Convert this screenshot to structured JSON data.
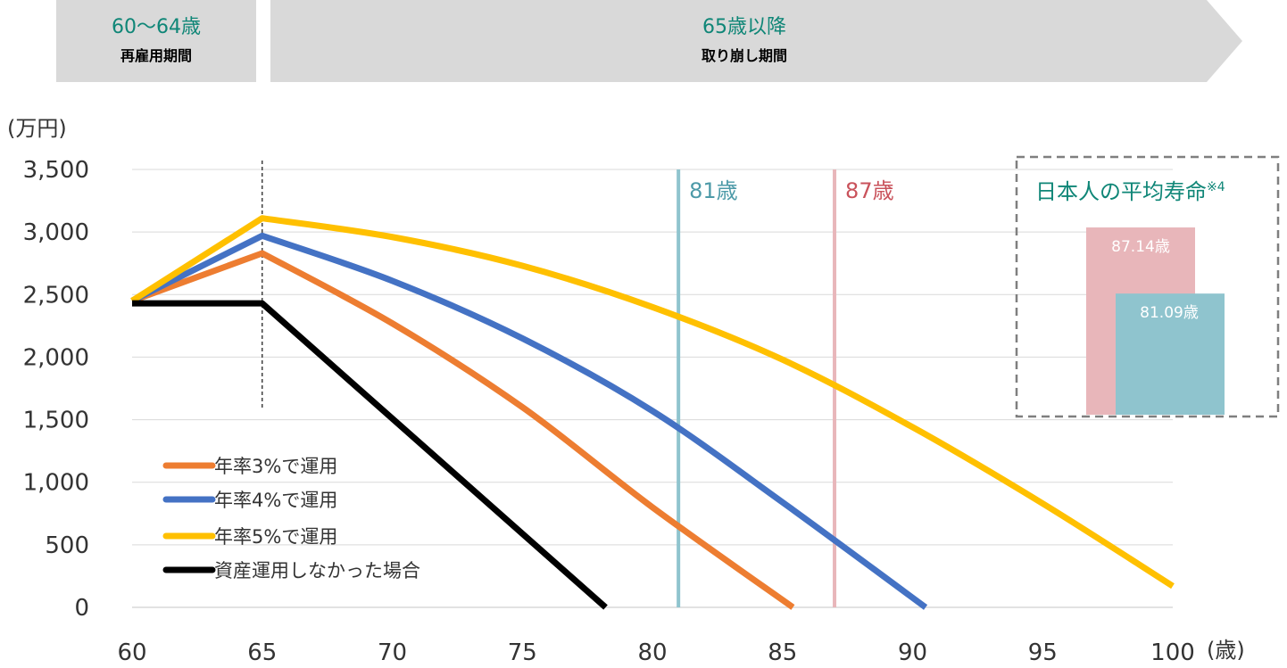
{
  "phases": [
    {
      "age": "60〜64歳",
      "label": "再雇用期間"
    },
    {
      "age": "65歳以降",
      "label": "取り崩し期間"
    }
  ],
  "chart_data": {
    "type": "line",
    "y_unit": "(万円)",
    "x_unit": "(歳)",
    "xlim": [
      60,
      100
    ],
    "ylim": [
      0,
      3500
    ],
    "x_ticks": [
      60,
      65,
      70,
      75,
      80,
      85,
      90,
      95,
      100
    ],
    "y_ticks": [
      0,
      500,
      1000,
      1500,
      2000,
      2500,
      3000,
      3500
    ],
    "y_tick_labels": [
      "0",
      "500",
      "1,000",
      "1,500",
      "2,000",
      "2,500",
      "3,000",
      "3,500"
    ],
    "reference_lines": [
      {
        "x": 81,
        "label": "81歳",
        "color": "#8fc4ce"
      },
      {
        "x": 87,
        "label": "87歳",
        "color": "#e8b6ba"
      }
    ],
    "dashed_line_x": 65,
    "series": [
      {
        "name": "年率3%で運用",
        "color": "#ed7d31",
        "x": [
          60,
          65,
          70,
          75,
          80,
          85.4
        ],
        "y": [
          2450,
          2830,
          2270,
          1600,
          800,
          0
        ]
      },
      {
        "name": "年率4%で運用",
        "color": "#4472c4",
        "x": [
          60,
          65,
          70,
          75,
          80,
          85,
          90.5
        ],
        "y": [
          2450,
          2970,
          2610,
          2150,
          1570,
          840,
          0
        ]
      },
      {
        "name": "年率5%で運用",
        "color": "#ffc000",
        "x": [
          60,
          65,
          70,
          75,
          80,
          85,
          90,
          95,
          100
        ],
        "y": [
          2450,
          3110,
          2960,
          2730,
          2400,
          1980,
          1440,
          830,
          170
        ]
      },
      {
        "name": "資産運用しなかった場合",
        "color": "#000000",
        "x": [
          60,
          65,
          78.2
        ],
        "y": [
          2430,
          2430,
          0
        ]
      }
    ],
    "inset": {
      "title": "日本人の平均寿命",
      "note": "※4",
      "bars": [
        {
          "label": "87.14歳",
          "value": 87.14,
          "color": "#e8b6ba"
        },
        {
          "label": "81.09歳",
          "value": 81.09,
          "color": "#8fc4ce"
        }
      ]
    }
  }
}
